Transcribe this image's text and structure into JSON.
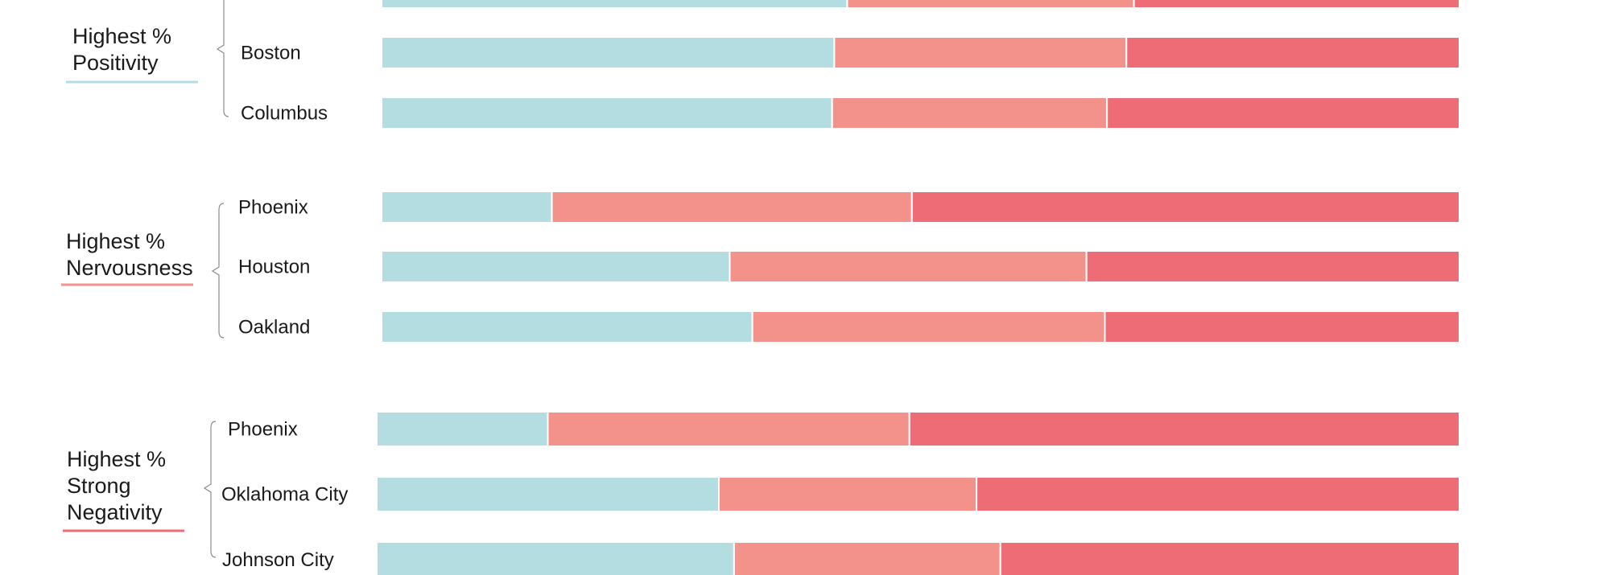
{
  "colors": {
    "positive": "#b3dde1",
    "nervous": "#f2928a",
    "negative": "#ed6c76",
    "text": "#1a1a1a",
    "brace": "#8c8c8c"
  },
  "chart_data": {
    "type": "bar",
    "orientation": "horizontal",
    "stacked": true,
    "normalized": true,
    "xlim": [
      0,
      100
    ],
    "categories": [
      "",
      "Boston",
      "Columbus",
      "Phoenix",
      "Houston",
      "Oakland",
      "Phoenix",
      "Oklahoma City",
      "Johnson City"
    ],
    "series": [
      {
        "color": "#b3dde1",
        "values": [
          43.2,
          42.0,
          41.8,
          15.8,
          32.3,
          34.4,
          15.8,
          31.6,
          33.0
        ]
      },
      {
        "color": "#f2928a",
        "values": [
          26.6,
          27.1,
          25.5,
          33.4,
          33.1,
          32.7,
          33.4,
          23.8,
          24.6
        ]
      },
      {
        "color": "#ed6c76",
        "values": [
          30.2,
          30.9,
          32.7,
          50.8,
          34.6,
          32.9,
          50.8,
          44.6,
          42.4
        ]
      }
    ],
    "groups": [
      {
        "title_lines": [
          "Highest %",
          "Positivity"
        ],
        "accent": "#b3dde1",
        "cities": [
          "",
          "Boston",
          "Columbus"
        ]
      },
      {
        "title_lines": [
          "Highest %",
          "Nervousness"
        ],
        "accent": "#f2928a",
        "cities": [
          "Phoenix",
          "Houston",
          "Oakland"
        ]
      },
      {
        "title_lines": [
          "Highest %",
          "Strong",
          "Negativity"
        ],
        "accent": "#ed6c76",
        "cities": [
          "Phoenix",
          "Oklahoma City",
          "Johnson City"
        ]
      }
    ]
  }
}
